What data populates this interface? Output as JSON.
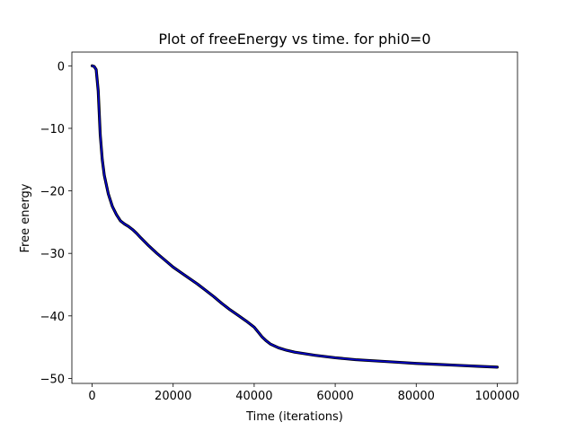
{
  "chart_data": {
    "type": "line",
    "title": "Plot of freeEnergy vs time. for phi0=0",
    "xlabel": "Time (iterations)",
    "ylabel": "Free energy",
    "xlim": [
      -5000,
      105000
    ],
    "ylim": [
      -50.8,
      2.2
    ],
    "xticks": [
      0,
      20000,
      40000,
      60000,
      80000,
      100000
    ],
    "xtick_labels": [
      "0",
      "20000",
      "40000",
      "60000",
      "80000",
      "100000"
    ],
    "yticks": [
      0,
      -10,
      -20,
      -30,
      -40,
      -50
    ],
    "ytick_labels": [
      "0",
      "−10",
      "−20",
      "−30",
      "−40",
      "−50"
    ],
    "grid": false,
    "legend": "none",
    "series": [
      {
        "color": "#0000cc",
        "edge_color": "#000000",
        "x": [
          0,
          500,
          1000,
          1500,
          2000,
          2500,
          3000,
          4000,
          5000,
          6000,
          7000,
          8000,
          9000,
          10000,
          11000,
          12000,
          14000,
          16000,
          18000,
          20000,
          22000,
          24000,
          26000,
          28000,
          30000,
          32000,
          34000,
          36000,
          38000,
          40000,
          41000,
          42000,
          43000,
          44000,
          46000,
          48000,
          50000,
          55000,
          60000,
          65000,
          70000,
          75000,
          80000,
          85000,
          90000,
          95000,
          100000
        ],
        "y": [
          0,
          -0.1,
          -0.6,
          -4,
          -11,
          -15,
          -17.5,
          -20.5,
          -22.5,
          -23.8,
          -24.8,
          -25.3,
          -25.7,
          -26.2,
          -26.8,
          -27.5,
          -28.8,
          -30,
          -31.1,
          -32.2,
          -33.1,
          -34,
          -34.9,
          -35.9,
          -36.9,
          -38,
          -39,
          -39.9,
          -40.8,
          -41.8,
          -42.6,
          -43.4,
          -44,
          -44.5,
          -45.1,
          -45.5,
          -45.8,
          -46.3,
          -46.7,
          -47,
          -47.2,
          -47.4,
          -47.6,
          -47.75,
          -47.9,
          -48.05,
          -48.2
        ]
      }
    ]
  }
}
